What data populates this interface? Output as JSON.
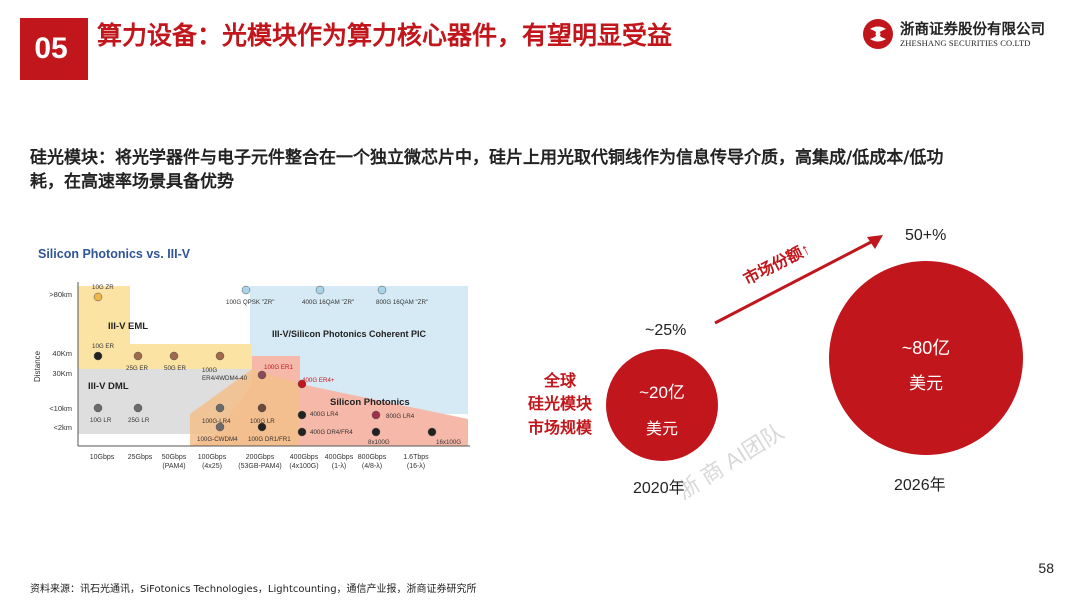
{
  "header": {
    "section_number": "05",
    "title": "算力设备：光模块作为算力核心器件，有望明显受益",
    "company_cn": "浙商证券股份有限公司",
    "company_en": "ZHESHANG SECURITIES CO.LTD"
  },
  "subtitle": "硅光模块：将光学器件与电子元件整合在一个独立微芯片中，硅片上用光取代铜线作为信息传导介质，高集成/低成本/低功耗，在高速率场景具备优势",
  "figure": {
    "title": "Silicon Photonics vs. III-V",
    "y_axis_label": "Distance",
    "y_ticks": [
      ">80km",
      "40Km",
      "30Km",
      "<10km",
      "<2km"
    ],
    "x_ticks": [
      "10Gbps",
      "25Gbps",
      "50Gbps\n(PAM4)",
      "100Gbps\n(4x25)",
      "200Gbps\n(53GB-PAM4)",
      "400Gbps\n(4x100G)",
      "400Gbps\n(1-λ)",
      "800Gbps\n(4/8-λ)",
      "1.6Tbps\n(16-λ)"
    ],
    "regions": {
      "eml": "III-V EML",
      "dml": "III-V DML",
      "coherent": "III-V/Silicon Photonics Coherent PIC",
      "sip": "Silicon Photonics"
    },
    "points": {
      "p10gzr": "10G ZR",
      "p10ger": "10G ER",
      "p10glr": "10G LR",
      "p25ger": "25G ER",
      "p50ger": "50G ER",
      "p100g_er4": "100G\nER4/4WDM4-40",
      "p25glr": "25G LR",
      "p100glr4": "100G-LR4",
      "p100gcwdm4": "100G-CWDM4",
      "p100gdr1": "100G DR1/FR1",
      "p100glr": "100G LR",
      "p100ger1": "100G ER1",
      "p400ger4": "400G ER4+",
      "p400glr4": "400G LR4",
      "p400gdr4": "400G DR4/FR4",
      "p8x100": "8x100G",
      "p800glr4": "800G LR4",
      "p16x100": "16x100G",
      "pqpsk": "100G QPSK \"ZR\"",
      "p400qam": "400G 16QAM \"ZR\"",
      "p800qam": "800G 16QAM \"ZR\""
    }
  },
  "market": {
    "share_label": "市场份额↑",
    "share_2020": "~25%",
    "share_2026": "50+%",
    "row_label_1": "全球",
    "row_label_2": "硅光模块",
    "row_label_3": "市场规模",
    "bubble_2020_value": "~20亿",
    "bubble_2020_unit": "美元",
    "bubble_2026_value": "~80亿",
    "bubble_2026_unit": "美元",
    "year_2020": "2020年",
    "year_2026": "2026年",
    "watermark": "浙 商   AI团队"
  },
  "colors": {
    "brand_red": "#c0161c",
    "bubble_red": "#c0161c"
  },
  "footer": {
    "source": "资料来源：讯石光通讯，SiFotonics Technologies，Lightcounting，通信产业报，浙商证券研究所",
    "page_number": "58"
  }
}
